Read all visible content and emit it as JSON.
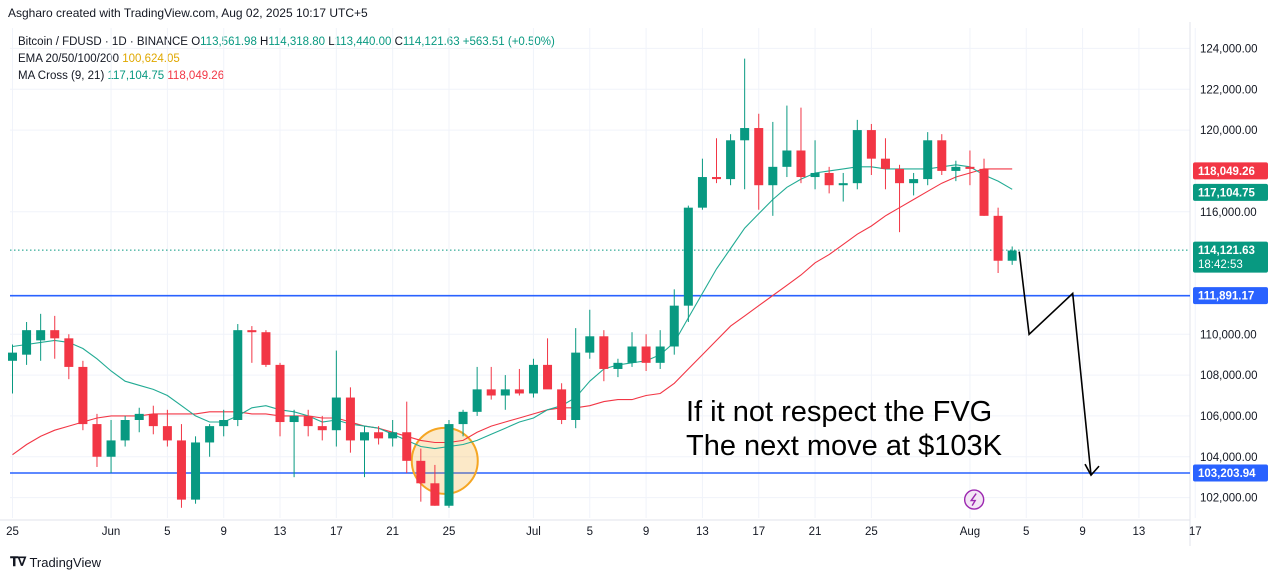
{
  "header": {
    "attribution": "Asgharo created with TradingView.com, Aug 02, 2025 10:17 UTC+5"
  },
  "legend": {
    "symbol": "Bitcoin / FDUSD · 1D · BINANCE",
    "ohlc": {
      "o_label": "O",
      "o": "113,561.98",
      "h_label": "H",
      "h": "114,318.80",
      "l_label": "L",
      "l": "113,440.00",
      "c_label": "C",
      "c": "114,121.63",
      "change": "+563.51 (+0.50%)"
    },
    "ema": {
      "label": "EMA 20/50/100/200",
      "value": "100,624.05"
    },
    "ma_cross": {
      "label": "MA Cross (9, 21)",
      "fast": "117,104.75",
      "slow": "118,049.26"
    }
  },
  "footer": {
    "brand": "TradingView"
  },
  "colors": {
    "up": "#089981",
    "down": "#f23645",
    "fast_ma": "#22ab94",
    "slow_ma": "#f23645",
    "level": "#2962ff",
    "grid": "#f0f3fa",
    "text": "#131722",
    "highlight": "#f5a623"
  },
  "chart_data": {
    "type": "candlestick",
    "y_range": [
      101000,
      125000
    ],
    "y_ticks": [
      {
        "value": 102000,
        "label": "102,000.00"
      },
      {
        "value": 104000,
        "label": "104,000.00"
      },
      {
        "value": 106000,
        "label": "106,000.00"
      },
      {
        "value": 108000,
        "label": "108,000.00"
      },
      {
        "value": 110000,
        "label": "110,000.00"
      },
      {
        "value": 116000,
        "label": "116,000.00"
      },
      {
        "value": 120000,
        "label": "120,000.00"
      },
      {
        "value": 122000,
        "label": "122,000.00"
      },
      {
        "value": 124000,
        "label": "124,000.00"
      }
    ],
    "x_ticks": [
      {
        "i": 0,
        "label": "25"
      },
      {
        "i": 7,
        "label": "Jun"
      },
      {
        "i": 11,
        "label": "5"
      },
      {
        "i": 15,
        "label": "9"
      },
      {
        "i": 19,
        "label": "13"
      },
      {
        "i": 23,
        "label": "17"
      },
      {
        "i": 27,
        "label": "21"
      },
      {
        "i": 31,
        "label": "25"
      },
      {
        "i": 37,
        "label": "Jul"
      },
      {
        "i": 41,
        "label": "5"
      },
      {
        "i": 45,
        "label": "9"
      },
      {
        "i": 49,
        "label": "13"
      },
      {
        "i": 53,
        "label": "17"
      },
      {
        "i": 57,
        "label": "21"
      },
      {
        "i": 61,
        "label": "25"
      },
      {
        "i": 68,
        "label": "Aug"
      },
      {
        "i": 72,
        "label": "5"
      },
      {
        "i": 76,
        "label": "9"
      },
      {
        "i": 80,
        "label": "13"
      },
      {
        "i": 84,
        "label": "17"
      }
    ],
    "candles": [
      {
        "o": 108700,
        "h": 109500,
        "l": 107100,
        "c": 109100
      },
      {
        "o": 109000,
        "h": 110600,
        "l": 108500,
        "c": 110200
      },
      {
        "o": 109700,
        "h": 111000,
        "l": 108700,
        "c": 110200
      },
      {
        "o": 110200,
        "h": 110900,
        "l": 108800,
        "c": 109800
      },
      {
        "o": 109800,
        "h": 110000,
        "l": 107800,
        "c": 108400
      },
      {
        "o": 108400,
        "h": 108700,
        "l": 105300,
        "c": 105600
      },
      {
        "o": 105600,
        "h": 106100,
        "l": 103500,
        "c": 104000
      },
      {
        "o": 104000,
        "h": 105800,
        "l": 103200,
        "c": 104800
      },
      {
        "o": 104800,
        "h": 106000,
        "l": 104500,
        "c": 105800
      },
      {
        "o": 105800,
        "h": 106400,
        "l": 105200,
        "c": 106100
      },
      {
        "o": 106100,
        "h": 106500,
        "l": 105100,
        "c": 105500
      },
      {
        "o": 105500,
        "h": 106300,
        "l": 104500,
        "c": 104800
      },
      {
        "o": 104800,
        "h": 105600,
        "l": 101500,
        "c": 101900
      },
      {
        "o": 101900,
        "h": 105000,
        "l": 101700,
        "c": 104700
      },
      {
        "o": 104700,
        "h": 105600,
        "l": 104000,
        "c": 105500
      },
      {
        "o": 105500,
        "h": 106300,
        "l": 105000,
        "c": 105800
      },
      {
        "o": 105800,
        "h": 110500,
        "l": 105500,
        "c": 110200
      },
      {
        "o": 110200,
        "h": 110400,
        "l": 108600,
        "c": 110100
      },
      {
        "o": 110100,
        "h": 110200,
        "l": 108400,
        "c": 108500
      },
      {
        "o": 108500,
        "h": 108600,
        "l": 105000,
        "c": 105700
      },
      {
        "o": 105700,
        "h": 106300,
        "l": 103000,
        "c": 106000
      },
      {
        "o": 106000,
        "h": 106300,
        "l": 105000,
        "c": 105500
      },
      {
        "o": 105500,
        "h": 106000,
        "l": 104800,
        "c": 105300
      },
      {
        "o": 105300,
        "h": 109200,
        "l": 104500,
        "c": 106900
      },
      {
        "o": 106900,
        "h": 107400,
        "l": 104200,
        "c": 104800
      },
      {
        "o": 104800,
        "h": 105500,
        "l": 103000,
        "c": 105200
      },
      {
        "o": 105200,
        "h": 105500,
        "l": 104600,
        "c": 104900
      },
      {
        "o": 104900,
        "h": 105800,
        "l": 104500,
        "c": 105200
      },
      {
        "o": 105200,
        "h": 106700,
        "l": 103200,
        "c": 103800
      },
      {
        "o": 103800,
        "h": 104400,
        "l": 101800,
        "c": 102700
      },
      {
        "o": 102700,
        "h": 103600,
        "l": 101600,
        "c": 101600
      },
      {
        "o": 101600,
        "h": 105800,
        "l": 101500,
        "c": 105600
      },
      {
        "o": 105600,
        "h": 106300,
        "l": 105000,
        "c": 106200
      },
      {
        "o": 106200,
        "h": 108400,
        "l": 106000,
        "c": 107300
      },
      {
        "o": 107300,
        "h": 108400,
        "l": 106800,
        "c": 107000
      },
      {
        "o": 107000,
        "h": 108000,
        "l": 106300,
        "c": 107300
      },
      {
        "o": 107300,
        "h": 108300,
        "l": 107000,
        "c": 107100
      },
      {
        "o": 107100,
        "h": 108800,
        "l": 106900,
        "c": 108500
      },
      {
        "o": 108500,
        "h": 109800,
        "l": 107400,
        "c": 107300
      },
      {
        "o": 107300,
        "h": 107600,
        "l": 105600,
        "c": 105800
      },
      {
        "o": 105800,
        "h": 110300,
        "l": 105400,
        "c": 109100
      },
      {
        "o": 109100,
        "h": 111200,
        "l": 108800,
        "c": 109900
      },
      {
        "o": 109900,
        "h": 110200,
        "l": 107700,
        "c": 108300
      },
      {
        "o": 108300,
        "h": 108800,
        "l": 107900,
        "c": 108600
      },
      {
        "o": 108600,
        "h": 110100,
        "l": 108400,
        "c": 109400
      },
      {
        "o": 109400,
        "h": 110000,
        "l": 108200,
        "c": 108600
      },
      {
        "o": 108600,
        "h": 110200,
        "l": 108300,
        "c": 109400
      },
      {
        "o": 109400,
        "h": 112200,
        "l": 109000,
        "c": 111400
      },
      {
        "o": 111400,
        "h": 116300,
        "l": 110600,
        "c": 116200
      },
      {
        "o": 116200,
        "h": 118600,
        "l": 116100,
        "c": 117700
      },
      {
        "o": 117700,
        "h": 119600,
        "l": 117400,
        "c": 117600
      },
      {
        "o": 117600,
        "h": 119800,
        "l": 117300,
        "c": 119500
      },
      {
        "o": 119500,
        "h": 123500,
        "l": 117100,
        "c": 120100
      },
      {
        "o": 120100,
        "h": 120800,
        "l": 116100,
        "c": 117300
      },
      {
        "o": 117300,
        "h": 120400,
        "l": 115800,
        "c": 118200
      },
      {
        "o": 118200,
        "h": 121200,
        "l": 117700,
        "c": 119000
      },
      {
        "o": 119000,
        "h": 121100,
        "l": 117400,
        "c": 117700
      },
      {
        "o": 117700,
        "h": 119500,
        "l": 117100,
        "c": 117900
      },
      {
        "o": 117900,
        "h": 118200,
        "l": 116900,
        "c": 117300
      },
      {
        "o": 117300,
        "h": 117900,
        "l": 116500,
        "c": 117400
      },
      {
        "o": 117400,
        "h": 120500,
        "l": 117100,
        "c": 120000
      },
      {
        "o": 120000,
        "h": 120300,
        "l": 117800,
        "c": 118600
      },
      {
        "o": 118600,
        "h": 119600,
        "l": 117100,
        "c": 118100
      },
      {
        "o": 118100,
        "h": 118300,
        "l": 115000,
        "c": 117400
      },
      {
        "o": 117400,
        "h": 117900,
        "l": 116800,
        "c": 117600
      },
      {
        "o": 117600,
        "h": 119900,
        "l": 117300,
        "c": 119500
      },
      {
        "o": 119500,
        "h": 119800,
        "l": 117800,
        "c": 118000
      },
      {
        "o": 118000,
        "h": 118500,
        "l": 117500,
        "c": 118200
      },
      {
        "o": 118200,
        "h": 119000,
        "l": 117300,
        "c": 118100
      },
      {
        "o": 118100,
        "h": 118600,
        "l": 115800,
        "c": 115800
      },
      {
        "o": 115800,
        "h": 116200,
        "l": 113000,
        "c": 113600
      },
      {
        "o": 113600,
        "h": 114300,
        "l": 113400,
        "c": 114100
      }
    ],
    "fast_ma": [
      109400,
      109500,
      109600,
      109700,
      109600,
      109300,
      108800,
      108200,
      107700,
      107500,
      107300,
      107000,
      106500,
      106000,
      105700,
      105700,
      106000,
      106400,
      106500,
      106300,
      106200,
      106000,
      105700,
      105800,
      105600,
      105500,
      105400,
      105100,
      104800,
      104500,
      104400,
      104500,
      104600,
      104800,
      105100,
      105400,
      105700,
      105900,
      106300,
      106500,
      106900,
      107700,
      108300,
      108500,
      108600,
      108700,
      109000,
      109600,
      110800,
      112000,
      113200,
      114200,
      115200,
      115900,
      116600,
      117200,
      117600,
      117900,
      118000,
      118100,
      118200,
      118200,
      118100,
      118100,
      118100,
      118100,
      118200,
      118300,
      118200,
      117800,
      117500,
      117100
    ],
    "slow_ma": [
      104100,
      104600,
      105000,
      105300,
      105500,
      105700,
      105900,
      106000,
      106000,
      106000,
      106100,
      106100,
      106100,
      106100,
      106200,
      106200,
      106200,
      106100,
      106100,
      106000,
      106000,
      106000,
      105900,
      105900,
      105700,
      105500,
      105400,
      105200,
      105000,
      104800,
      104700,
      104700,
      104800,
      105200,
      105500,
      105700,
      105900,
      106100,
      106300,
      106400,
      106400,
      106500,
      106700,
      106800,
      106800,
      107000,
      107100,
      107600,
      108300,
      109000,
      109700,
      110400,
      110900,
      111400,
      111900,
      112400,
      112900,
      113500,
      113900,
      114400,
      114900,
      115300,
      115800,
      116200,
      116600,
      117000,
      117400,
      117700,
      117900,
      118100,
      118100,
      118100
    ],
    "levels": [
      {
        "value": 111891.17,
        "label": "111,891.17"
      },
      {
        "value": 103203.94,
        "label": "103,203.94"
      }
    ],
    "price_tags": {
      "slow_ma": "118,049.26",
      "fast_ma": "117,104.75",
      "last": "114,121.63",
      "countdown": "18:42:53"
    },
    "last_price": 114121.63,
    "projection": [
      {
        "i": 71.5,
        "v": 114050
      },
      {
        "i": 72.2,
        "v": 110000
      },
      {
        "i": 75.3,
        "v": 112000
      },
      {
        "i": 76.6,
        "v": 103100
      }
    ],
    "annotation": {
      "line1": "If it not respect the FVG",
      "line2": "The next move at $103K"
    },
    "highlight": {
      "i": 30.7,
      "v": 103800
    },
    "event_icon": {
      "i": 68.3,
      "v": 102000
    }
  }
}
